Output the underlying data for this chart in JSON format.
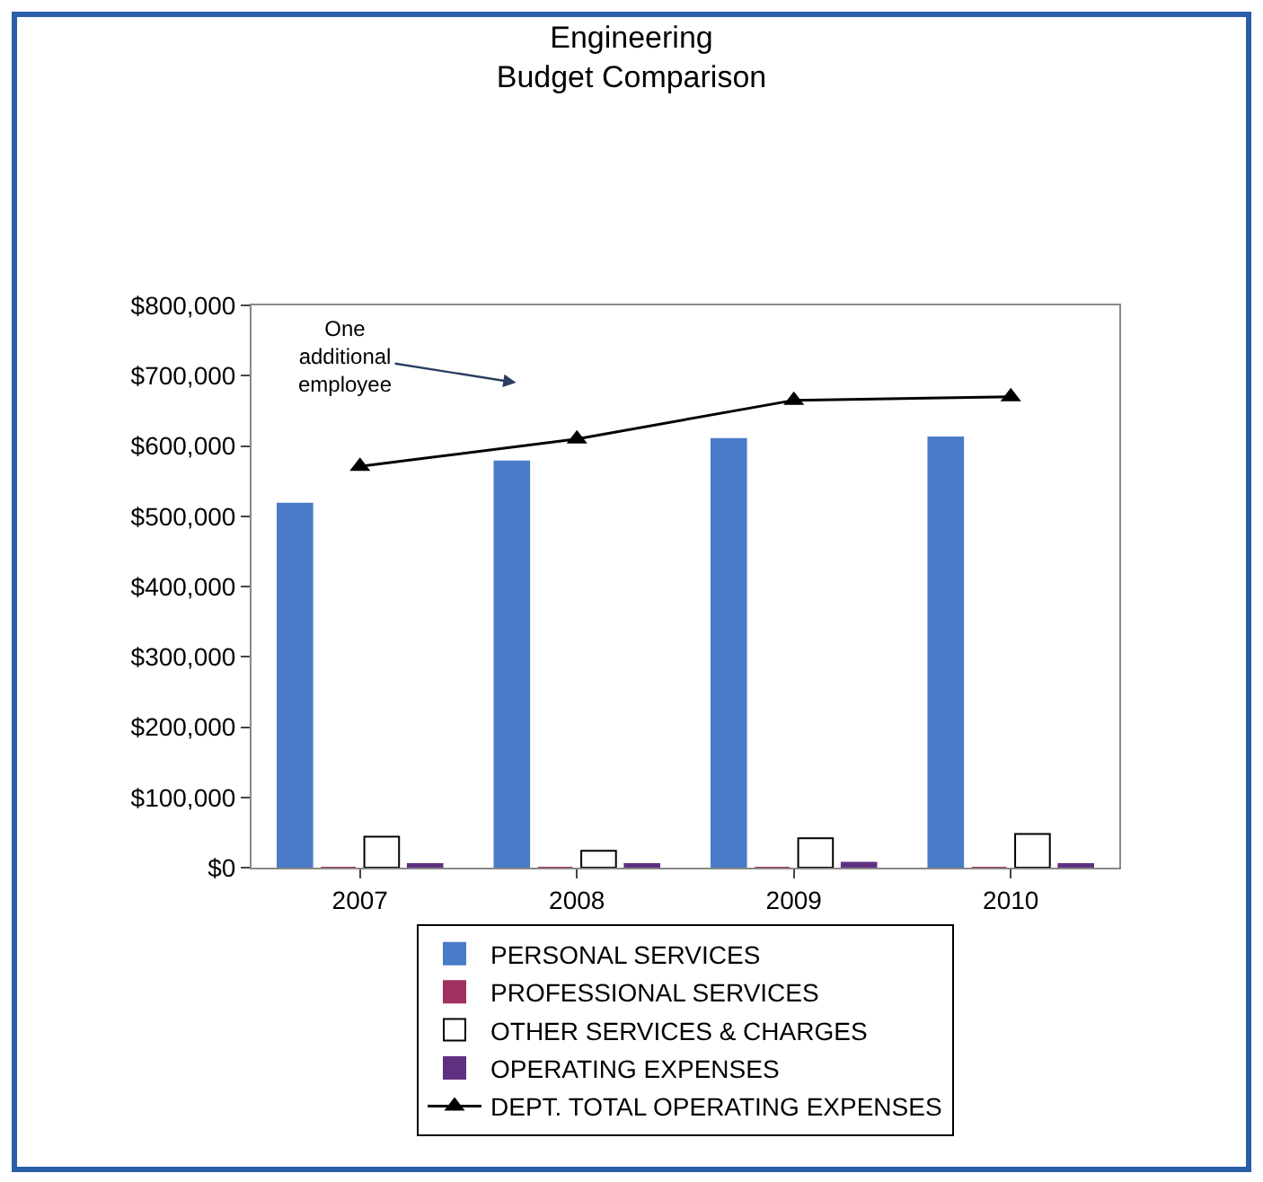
{
  "chart_data": {
    "type": "bar",
    "title": "Engineering\nBudget Comparison",
    "categories": [
      "2007",
      "2008",
      "2009",
      "2010"
    ],
    "series": [
      {
        "name": "PERSONAL SERVICES",
        "color": "#4a7bc8",
        "values": [
          518000,
          578000,
          610000,
          612000
        ]
      },
      {
        "name": "PROFESSIONAL SERVICES",
        "color": "#a0305f",
        "values": [
          0,
          0,
          0,
          0
        ]
      },
      {
        "name": "OTHER SERVICES & CHARGES",
        "color": "#ffffff",
        "values": [
          44000,
          24000,
          42000,
          48000
        ]
      },
      {
        "name": "OPERATING EXPENSES",
        "color": "#603080",
        "values": [
          5000,
          5000,
          7000,
          5000
        ]
      },
      {
        "name": "DEPT. TOTAL OPERATING EXPENSES",
        "type": "line",
        "color": "#000000",
        "marker": "triangle",
        "values": [
          571000,
          610000,
          665000,
          670000
        ]
      }
    ],
    "ylim": [
      0,
      800000
    ],
    "yticks": [
      {
        "value": 0,
        "label": "$0"
      },
      {
        "value": 100000,
        "label": "$100,000"
      },
      {
        "value": 200000,
        "label": "$200,000"
      },
      {
        "value": 300000,
        "label": "$300,000"
      },
      {
        "value": 400000,
        "label": "$400,000"
      },
      {
        "value": 500000,
        "label": "$500,000"
      },
      {
        "value": 600000,
        "label": "$600,000"
      },
      {
        "value": 700000,
        "label": "$700,000"
      },
      {
        "value": 800000,
        "label": "$800,000"
      }
    ],
    "annotations": [
      "One\nadditional\nemployee"
    ],
    "legend": "bottom"
  }
}
